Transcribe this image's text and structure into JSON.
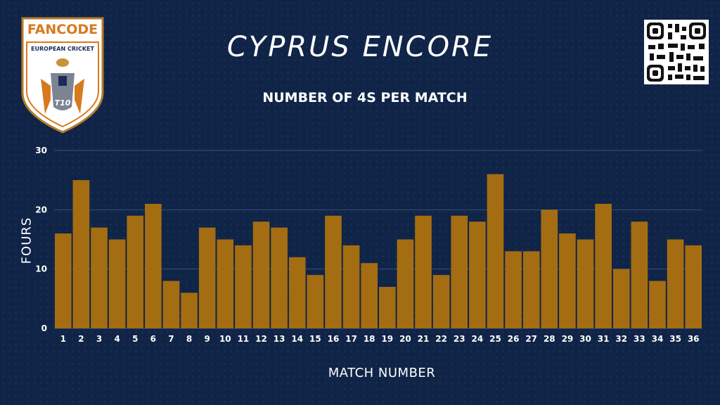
{
  "header": {
    "title": "CYPRUS ENCORE",
    "logo_text": "FANCODE",
    "logo_subtext": "EUROPEAN CRICKET",
    "logo_badge": "T10"
  },
  "colors": {
    "background": "#0f2447",
    "bar": "#a46d12",
    "grid": "#3a5078",
    "logo_orange": "#d67a1d",
    "logo_navy": "#1b2a5a"
  },
  "chart_data": {
    "type": "bar",
    "title": "NUMBER OF 4S PER MATCH",
    "xlabel": "MATCH NUMBER",
    "ylabel": "FOURS",
    "ylim": [
      0,
      30
    ],
    "yticks": [
      0,
      10,
      20,
      30
    ],
    "grid": true,
    "categories": [
      "1",
      "2",
      "3",
      "4",
      "5",
      "6",
      "7",
      "8",
      "9",
      "10",
      "11",
      "12",
      "13",
      "14",
      "15",
      "16",
      "17",
      "18",
      "19",
      "20",
      "21",
      "22",
      "23",
      "24",
      "25",
      "26",
      "27",
      "28",
      "29",
      "30",
      "31",
      "32",
      "33",
      "34",
      "35",
      "36"
    ],
    "values": [
      16,
      25,
      17,
      15,
      19,
      21,
      8,
      6,
      17,
      15,
      14,
      18,
      17,
      12,
      9,
      19,
      14,
      11,
      7,
      15,
      19,
      9,
      19,
      18,
      26,
      13,
      13,
      20,
      16,
      15,
      21,
      10,
      18,
      8,
      15,
      14
    ]
  }
}
